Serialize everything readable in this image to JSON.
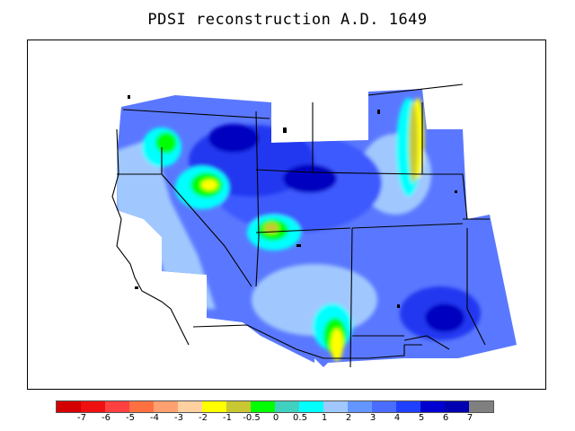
{
  "title": "PDSI reconstruction A.D. 1649",
  "legend": {
    "labels": [
      "-7",
      "-6",
      "-5",
      "-4",
      "-3",
      "-2",
      "-1",
      "-0.5",
      "0",
      "0.5",
      "1",
      "2",
      "3",
      "4",
      "5",
      "6",
      "7"
    ],
    "colors": [
      "#d40000",
      "#f01010",
      "#ff4040",
      "#ff7040",
      "#ffa070",
      "#ffd0a0",
      "#ffff00",
      "#c8c832",
      "#00ff00",
      "#40d0c0",
      "#00ffff",
      "#a0c8ff",
      "#6496ff",
      "#4a6cff",
      "#2040ff",
      "#0000d0",
      "#0000b0",
      "#808080"
    ]
  },
  "palette": {
    "base": "#5a78ff",
    "light_blue": "#a0c8ff",
    "dark_blue": "#1a2ae0",
    "darkest_blue": "#0000c0",
    "cyan": "#00ffff",
    "green": "#00ff00",
    "yellow": "#ffff00",
    "olive": "#c8c832"
  }
}
